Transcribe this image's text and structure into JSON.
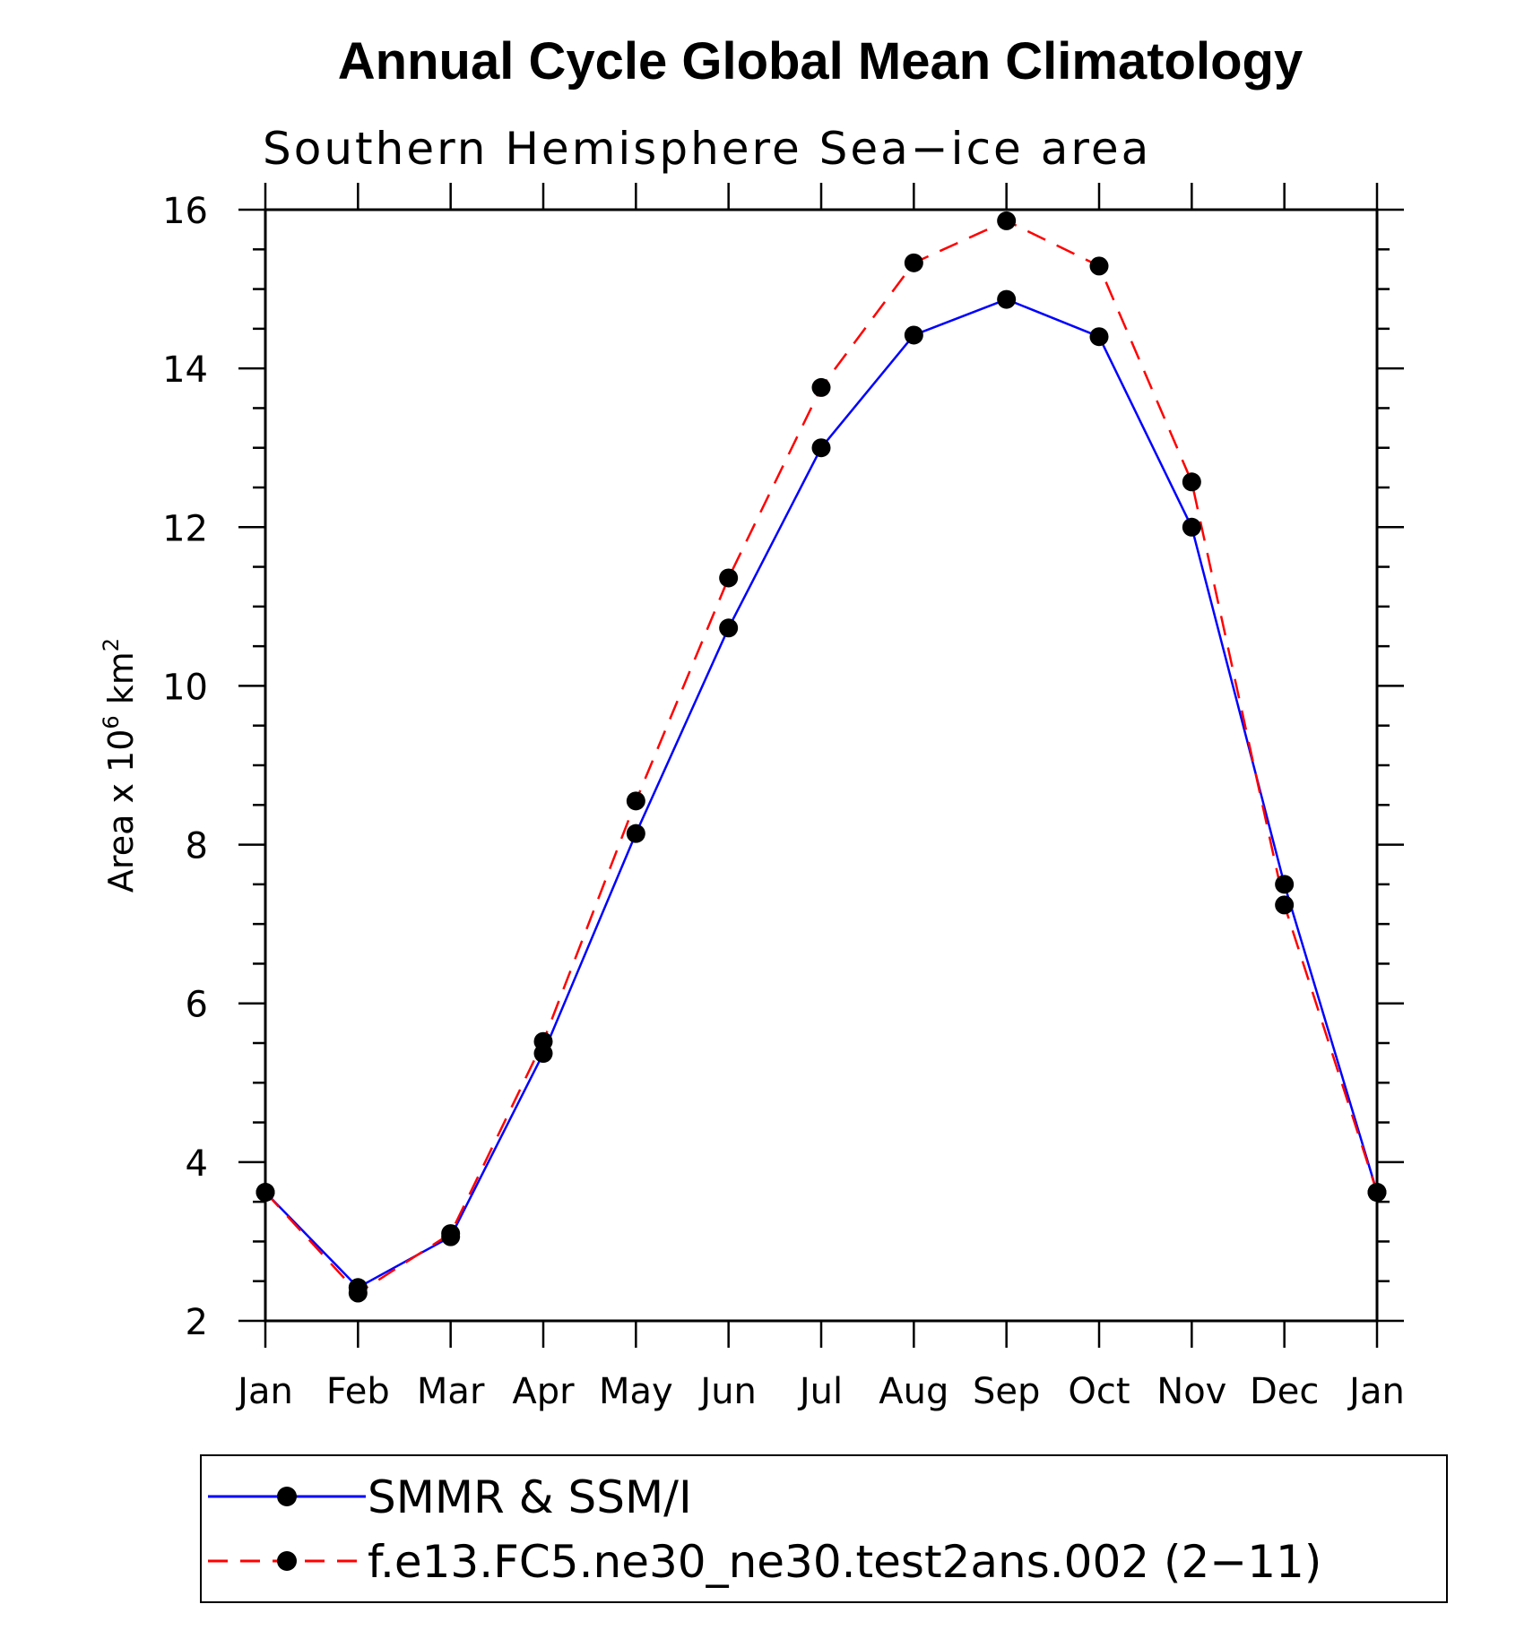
{
  "chart_data": {
    "type": "line",
    "title": "Annual Cycle Global Mean Climatology",
    "subtitle": "Southern Hemisphere Sea−ice area",
    "ylabel": "Area x 10",
    "ylabel_exponent": "6",
    "ylabel_unit": "km",
    "ylabel_unit_exponent": "2",
    "ylim": [
      2,
      16
    ],
    "yticks": [
      "2",
      "4",
      "6",
      "8",
      "10",
      "12",
      "14",
      "16"
    ],
    "categories": [
      "Jan",
      "Feb",
      "Mar",
      "Apr",
      "May",
      "Jun",
      "Jul",
      "Aug",
      "Sep",
      "Oct",
      "Nov",
      "Dec",
      "Jan"
    ],
    "grid": false,
    "legend_position": "bottom",
    "series": [
      {
        "name": "SMMR & SSM/I",
        "color": "#0000ff",
        "line_style": "solid",
        "marker": "filled-circle",
        "values": [
          3.62,
          2.42,
          3.06,
          5.37,
          8.14,
          10.73,
          13.0,
          14.42,
          14.87,
          14.4,
          12.0,
          7.5,
          3.62
        ]
      },
      {
        "name": "f.e13.FC5.ne30_ne30.test2ans.002 (2−11)",
        "color": "#ff0000",
        "line_style": "dashed",
        "marker": "filled-circle",
        "values": [
          3.62,
          2.35,
          3.1,
          5.52,
          8.55,
          11.36,
          13.76,
          15.33,
          15.86,
          15.29,
          12.57,
          7.24,
          3.62
        ]
      }
    ]
  }
}
